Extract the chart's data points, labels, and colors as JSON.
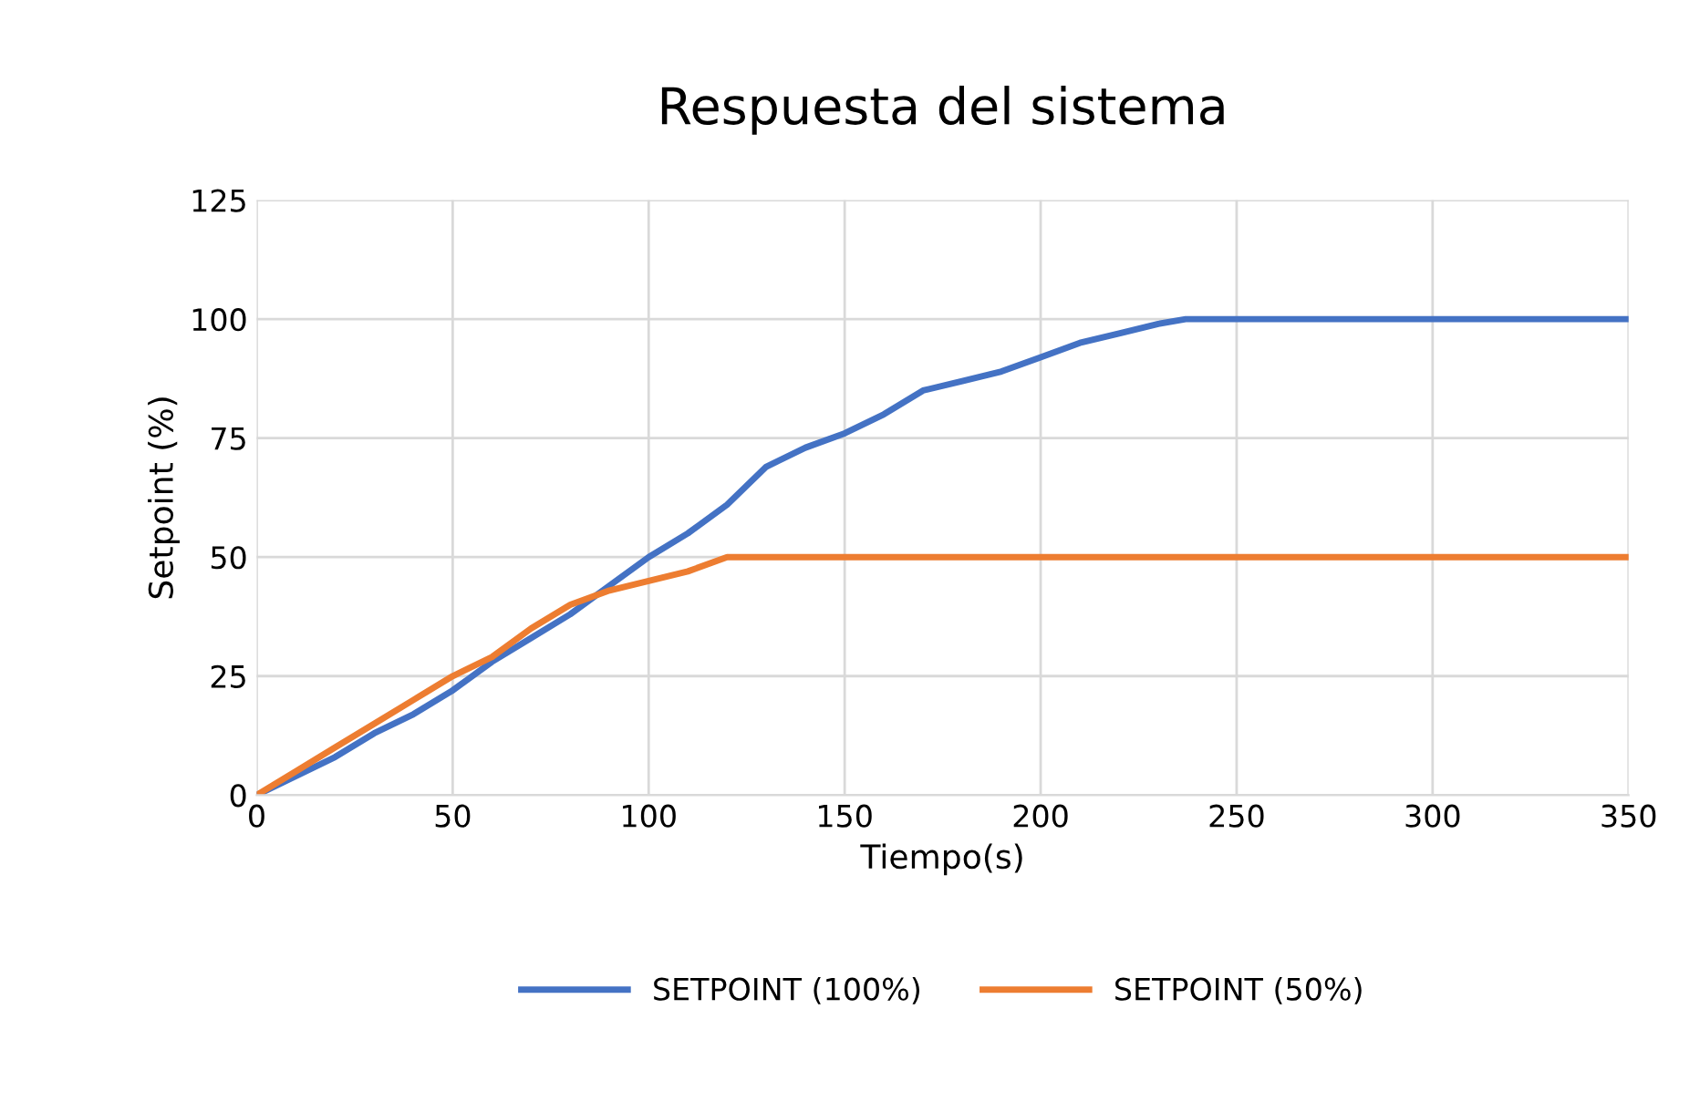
{
  "chart_data": {
    "type": "line",
    "title": "Respuesta del sistema",
    "xlabel": "Tiempo(s)",
    "ylabel": "Setpoint (%)",
    "xlim": [
      0,
      350
    ],
    "xticks": [
      0,
      50,
      100,
      150,
      200,
      250,
      300,
      350
    ],
    "ylim": [
      0,
      125
    ],
    "yticks": [
      0,
      25,
      50,
      75,
      100,
      125
    ],
    "grid": true,
    "legend": "bottom",
    "marker": "none",
    "line_style": "solid",
    "series": [
      {
        "name": "SETPOINT (100%)",
        "color": "#4472c4",
        "x": [
          0,
          20,
          30,
          40,
          50,
          60,
          70,
          80,
          90,
          100,
          110,
          120,
          130,
          140,
          150,
          160,
          170,
          180,
          190,
          200,
          210,
          220,
          230,
          237,
          350
        ],
        "values": [
          0,
          8,
          13,
          17,
          22,
          28,
          33,
          38,
          44,
          50,
          55,
          61,
          69,
          73,
          76,
          80,
          85,
          87,
          89,
          92,
          95,
          97,
          99,
          100,
          100
        ]
      },
      {
        "name": "SETPOINT (50%)",
        "color": "#ed7d31",
        "x": [
          0,
          10,
          20,
          30,
          40,
          50,
          60,
          70,
          80,
          90,
          100,
          110,
          120,
          125,
          130,
          350
        ],
        "values": [
          0,
          5,
          10,
          15,
          20,
          25,
          29,
          35,
          40,
          43,
          45,
          47,
          50,
          50,
          50,
          50
        ]
      }
    ]
  }
}
